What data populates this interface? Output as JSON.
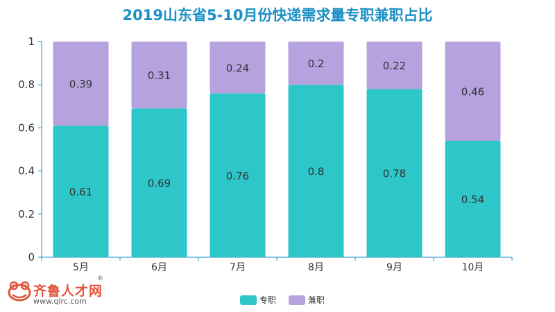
{
  "chart_data": {
    "type": "bar",
    "stacked": true,
    "title": "2019山东省5-10月份快递需求量专职兼职占比",
    "categories": [
      "5月",
      "6月",
      "7月",
      "8月",
      "9月",
      "10月"
    ],
    "series": [
      {
        "name": "专职",
        "color": "#2ec7c9",
        "values": [
          0.61,
          0.69,
          0.76,
          0.8,
          0.78,
          0.54
        ]
      },
      {
        "name": "兼职",
        "color": "#b6a2de",
        "values": [
          0.39,
          0.31,
          0.24,
          0.2,
          0.22,
          0.46
        ]
      }
    ],
    "ylim": [
      0,
      1
    ],
    "yticks": [
      "0",
      "0.2",
      "0.4",
      "0.6",
      "0.8",
      "1"
    ],
    "ytick_values": [
      0,
      0.2,
      0.4,
      0.6,
      0.8,
      1
    ],
    "legend_position": "bottom",
    "grid": false
  },
  "logo": {
    "name": "齐鲁人才网",
    "url": "www.qlrc.com",
    "reg": "®",
    "color": "#e0553b"
  }
}
